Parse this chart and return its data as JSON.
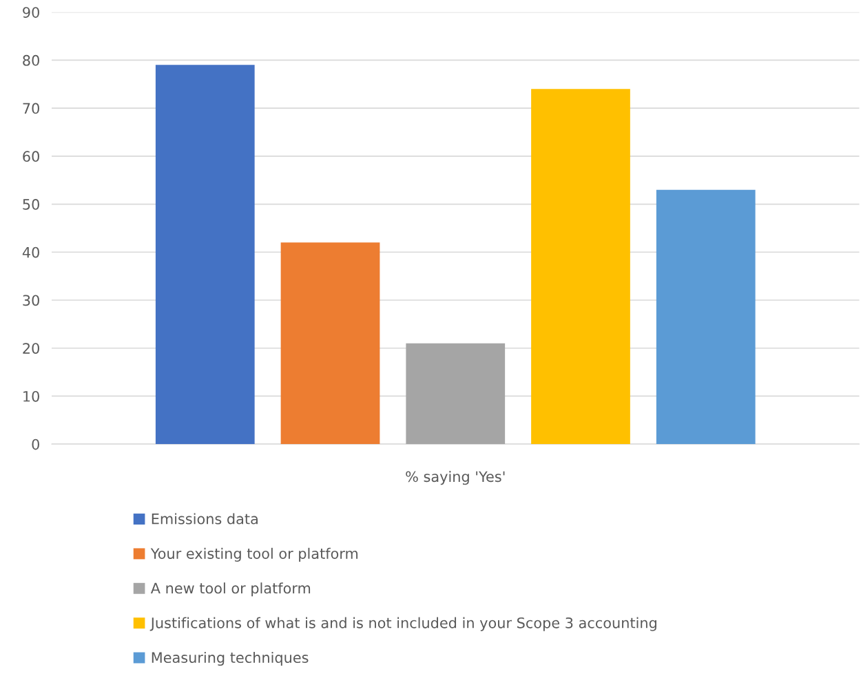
{
  "chart_data": {
    "type": "bar",
    "categories": [
      "% saying 'Yes'"
    ],
    "series": [
      {
        "name": "Emissions data",
        "color": "#4472c4",
        "values": [
          79
        ]
      },
      {
        "name": "Your existing tool or platform",
        "color": "#ed7d31",
        "values": [
          42
        ]
      },
      {
        "name": "A new tool or platform",
        "color": "#a5a5a5",
        "values": [
          21
        ]
      },
      {
        "name": "Justifications of what is and is not included in your Scope 3 accounting",
        "color": "#ffc000",
        "values": [
          74
        ]
      },
      {
        "name": "Measuring techniques",
        "color": "#5b9bd5",
        "values": [
          53
        ]
      }
    ],
    "ylim": [
      0,
      90
    ],
    "yticks": [
      0,
      10,
      20,
      30,
      40,
      50,
      60,
      70,
      80,
      90
    ],
    "grid": "y",
    "legend": "bottom"
  }
}
